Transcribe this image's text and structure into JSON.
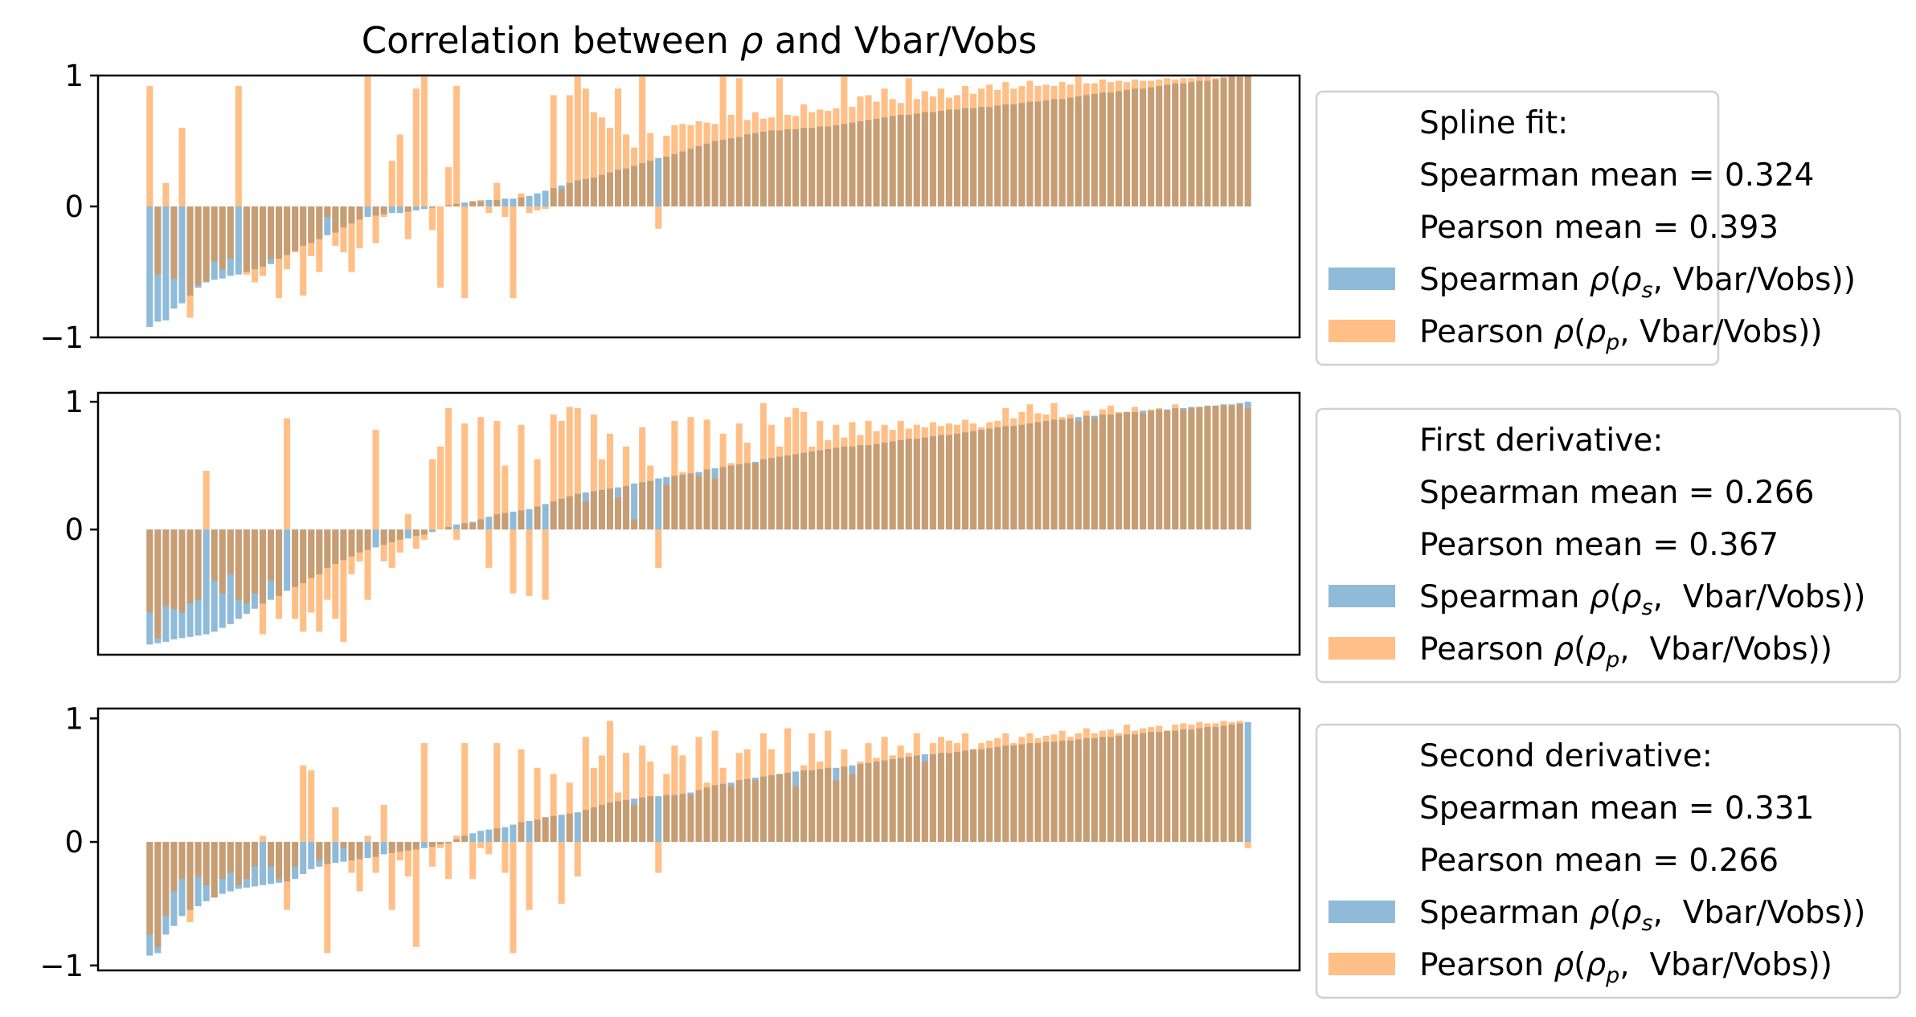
{
  "title": "Correlation between ρ and Vbar/Vobs",
  "chart_data": [
    {
      "type": "bar",
      "panel": "spline",
      "ylim": [
        -1,
        1
      ],
      "yticks": [
        {
          "value": 1,
          "label": "1"
        },
        {
          "value": 0,
          "label": "0"
        },
        {
          "value": -1,
          "label": "−1"
        }
      ],
      "legend": {
        "lines": [
          "Spline fit:",
          "Spearman mean = 0.324",
          "Pearson mean = 0.393"
        ],
        "series_labels": [
          "Spearman ρ(ρs, Vbar/Vobs)",
          "Pearson ρ(ρp, Vbar/Vobs)"
        ]
      },
      "spearman": [
        -0.92,
        -0.88,
        -0.87,
        -0.78,
        -0.74,
        -0.68,
        -0.62,
        -0.58,
        -0.56,
        -0.55,
        -0.53,
        -0.52,
        -0.5,
        -0.48,
        -0.46,
        -0.44,
        -0.4,
        -0.37,
        -0.34,
        -0.3,
        -0.28,
        -0.25,
        -0.22,
        -0.2,
        -0.16,
        -0.13,
        -0.1,
        -0.08,
        -0.07,
        -0.06,
        -0.05,
        -0.05,
        -0.04,
        -0.03,
        -0.02,
        -0.01,
        0.0,
        0.01,
        0.02,
        0.03,
        0.04,
        0.04,
        0.05,
        0.05,
        0.06,
        0.06,
        0.07,
        0.08,
        0.1,
        0.12,
        0.14,
        0.16,
        0.18,
        0.2,
        0.21,
        0.22,
        0.24,
        0.26,
        0.28,
        0.29,
        0.31,
        0.33,
        0.35,
        0.37,
        0.38,
        0.4,
        0.42,
        0.44,
        0.46,
        0.48,
        0.5,
        0.51,
        0.52,
        0.53,
        0.55,
        0.56,
        0.57,
        0.58,
        0.58,
        0.59,
        0.59,
        0.6,
        0.6,
        0.61,
        0.61,
        0.62,
        0.63,
        0.64,
        0.65,
        0.66,
        0.67,
        0.68,
        0.69,
        0.7,
        0.7,
        0.71,
        0.72,
        0.72,
        0.73,
        0.74,
        0.74,
        0.75,
        0.75,
        0.76,
        0.76,
        0.77,
        0.78,
        0.78,
        0.79,
        0.8,
        0.8,
        0.81,
        0.82,
        0.82,
        0.83,
        0.84,
        0.85,
        0.86,
        0.87,
        0.87,
        0.88,
        0.89,
        0.9,
        0.9,
        0.91,
        0.92,
        0.93,
        0.94,
        0.94,
        0.95,
        0.96,
        0.96,
        0.97,
        0.98,
        0.99,
        0.99,
        1.0
      ],
      "pearson": [
        0.92,
        -0.52,
        0.18,
        -0.55,
        0.6,
        -0.85,
        -0.6,
        -0.57,
        -0.42,
        -0.48,
        -0.4,
        0.92,
        -0.52,
        -0.58,
        -0.53,
        -0.4,
        -0.7,
        -0.48,
        -0.35,
        -0.68,
        -0.38,
        -0.5,
        -0.08,
        -0.3,
        -0.35,
        -0.5,
        -0.32,
        0.99,
        -0.28,
        -0.08,
        0.35,
        0.55,
        -0.25,
        0.9,
        0.99,
        -0.18,
        -0.62,
        0.3,
        0.92,
        -0.7,
        0.04,
        0.05,
        -0.05,
        0.18,
        -0.08,
        -0.7,
        0.1,
        -0.05,
        -0.03,
        -0.02,
        0.85,
        0.13,
        0.85,
        0.99,
        0.9,
        0.72,
        0.68,
        0.6,
        0.9,
        0.55,
        0.45,
        0.99,
        0.56,
        -0.17,
        0.54,
        0.62,
        0.63,
        0.62,
        0.65,
        0.64,
        0.63,
        0.99,
        0.7,
        0.98,
        0.66,
        0.72,
        0.67,
        0.68,
        0.98,
        0.7,
        0.69,
        0.78,
        0.72,
        0.74,
        0.73,
        0.75,
        0.99,
        0.76,
        0.84,
        0.85,
        0.8,
        0.9,
        0.82,
        0.79,
        0.98,
        0.82,
        0.88,
        0.84,
        0.9,
        0.83,
        0.85,
        0.92,
        0.86,
        0.9,
        0.93,
        0.89,
        0.95,
        0.9,
        0.92,
        0.96,
        0.92,
        0.93,
        0.92,
        0.95,
        0.93,
        0.99,
        0.94,
        0.94,
        0.97,
        0.95,
        0.96,
        0.95,
        0.97,
        0.96,
        0.96,
        0.97,
        0.98,
        0.97,
        0.98,
        0.98,
        0.99,
        0.99,
        0.98,
        0.99,
        1.0,
        0.99,
        1.0
      ],
      "colors": {
        "spearman": "#1f77b4",
        "pearson": "#ff7f0e"
      }
    },
    {
      "type": "bar",
      "panel": "first-derivative",
      "ylim": [
        -0.98,
        1.07
      ],
      "yticks": [
        {
          "value": 1,
          "label": "1"
        },
        {
          "value": 0,
          "label": "0"
        }
      ],
      "legend": {
        "lines": [
          "First derivative:",
          "Spearman mean = 0.266",
          "Pearson mean = 0.367"
        ],
        "series_labels": [
          "Spearman ρ(ρs,  Vbar/Vobs)",
          "Pearson ρ(ρp,  Vbar/Vobs)"
        ]
      },
      "spearman": [
        -0.9,
        -0.89,
        -0.88,
        -0.86,
        -0.85,
        -0.84,
        -0.83,
        -0.82,
        -0.8,
        -0.77,
        -0.74,
        -0.7,
        -0.66,
        -0.62,
        -0.58,
        -0.55,
        -0.52,
        -0.48,
        -0.45,
        -0.42,
        -0.38,
        -0.35,
        -0.3,
        -0.27,
        -0.24,
        -0.21,
        -0.18,
        -0.16,
        -0.14,
        -0.12,
        -0.1,
        -0.08,
        -0.07,
        -0.05,
        -0.04,
        -0.02,
        0.0,
        0.02,
        0.04,
        0.05,
        0.06,
        0.08,
        0.1,
        0.12,
        0.13,
        0.14,
        0.15,
        0.16,
        0.18,
        0.2,
        0.22,
        0.24,
        0.26,
        0.28,
        0.29,
        0.3,
        0.31,
        0.32,
        0.33,
        0.34,
        0.36,
        0.37,
        0.38,
        0.4,
        0.41,
        0.42,
        0.43,
        0.44,
        0.45,
        0.47,
        0.48,
        0.49,
        0.5,
        0.51,
        0.52,
        0.53,
        0.55,
        0.56,
        0.57,
        0.58,
        0.59,
        0.6,
        0.61,
        0.62,
        0.63,
        0.64,
        0.65,
        0.65,
        0.66,
        0.66,
        0.67,
        0.68,
        0.69,
        0.7,
        0.71,
        0.71,
        0.72,
        0.73,
        0.74,
        0.74,
        0.75,
        0.76,
        0.77,
        0.78,
        0.79,
        0.8,
        0.81,
        0.81,
        0.82,
        0.83,
        0.84,
        0.85,
        0.86,
        0.86,
        0.87,
        0.88,
        0.89,
        0.89,
        0.9,
        0.9,
        0.91,
        0.92,
        0.92,
        0.93,
        0.93,
        0.94,
        0.94,
        0.95,
        0.95,
        0.96,
        0.96,
        0.97,
        0.97,
        0.98,
        0.98,
        0.99,
        1.0
      ],
      "pearson": [
        -0.65,
        -0.85,
        -0.6,
        -0.62,
        -0.65,
        -0.58,
        -0.55,
        0.46,
        -0.4,
        -0.5,
        -0.35,
        -0.55,
        -0.58,
        -0.5,
        -0.82,
        -0.4,
        -0.7,
        0.87,
        -0.7,
        -0.8,
        -0.65,
        -0.8,
        -0.55,
        -0.7,
        -0.88,
        -0.35,
        -0.25,
        -0.55,
        0.78,
        -0.25,
        -0.3,
        -0.18,
        0.12,
        -0.15,
        -0.08,
        0.55,
        0.65,
        0.95,
        -0.08,
        0.83,
        0.05,
        0.88,
        -0.3,
        0.85,
        0.5,
        -0.5,
        0.82,
        -0.52,
        0.55,
        -0.55,
        0.9,
        0.85,
        0.96,
        0.95,
        0.22,
        0.9,
        0.55,
        0.75,
        0.25,
        0.65,
        0.08,
        0.8,
        0.5,
        -0.3,
        0.35,
        0.85,
        0.45,
        0.88,
        0.42,
        0.86,
        0.4,
        0.75,
        0.52,
        0.83,
        0.68,
        0.52,
        0.99,
        0.82,
        0.65,
        0.88,
        0.95,
        0.92,
        0.65,
        0.85,
        0.7,
        0.82,
        0.72,
        0.84,
        0.74,
        0.85,
        0.77,
        0.82,
        0.78,
        0.85,
        0.79,
        0.82,
        0.8,
        0.84,
        0.81,
        0.83,
        0.82,
        0.86,
        0.83,
        0.8,
        0.84,
        0.85,
        0.95,
        0.87,
        0.92,
        0.98,
        0.91,
        0.9,
        0.99,
        0.88,
        0.9,
        0.85,
        0.93,
        0.87,
        0.94,
        0.97,
        0.92,
        0.92,
        0.96,
        0.91,
        0.94,
        0.95,
        0.93,
        0.98,
        0.94,
        0.95,
        0.96,
        0.96,
        0.97,
        0.97,
        0.97,
        0.98,
        0.95
      ],
      "colors": {
        "spearman": "#1f77b4",
        "pearson": "#ff7f0e"
      }
    },
    {
      "type": "bar",
      "panel": "second-derivative",
      "ylim": [
        -1.04,
        1.08
      ],
      "yticks": [
        {
          "value": 1,
          "label": "1"
        },
        {
          "value": 0,
          "label": "0"
        },
        {
          "value": -1,
          "label": "−1"
        }
      ],
      "legend": {
        "lines": [
          "Second derivative:",
          "Spearman mean = 0.331",
          "Pearson mean = 0.266"
        ],
        "series_labels": [
          "Spearman ρ(ρs,  Vbar/Vobs)",
          "Pearson ρ(ρp,  Vbar/Vobs)"
        ]
      },
      "spearman": [
        -0.92,
        -0.9,
        -0.75,
        -0.68,
        -0.6,
        -0.55,
        -0.52,
        -0.48,
        -0.45,
        -0.42,
        -0.4,
        -0.38,
        -0.37,
        -0.36,
        -0.35,
        -0.34,
        -0.33,
        -0.32,
        -0.3,
        -0.26,
        -0.22,
        -0.2,
        -0.18,
        -0.17,
        -0.16,
        -0.15,
        -0.14,
        -0.13,
        -0.12,
        -0.1,
        -0.09,
        -0.08,
        -0.07,
        -0.06,
        -0.05,
        -0.04,
        -0.02,
        -0.01,
        0.02,
        0.05,
        0.07,
        0.09,
        0.1,
        0.11,
        0.12,
        0.14,
        0.16,
        0.17,
        0.18,
        0.2,
        0.21,
        0.22,
        0.23,
        0.24,
        0.26,
        0.28,
        0.3,
        0.32,
        0.33,
        0.34,
        0.35,
        0.36,
        0.37,
        0.37,
        0.38,
        0.38,
        0.39,
        0.4,
        0.42,
        0.44,
        0.46,
        0.47,
        0.48,
        0.5,
        0.51,
        0.52,
        0.53,
        0.54,
        0.55,
        0.56,
        0.57,
        0.58,
        0.58,
        0.59,
        0.6,
        0.6,
        0.61,
        0.62,
        0.63,
        0.64,
        0.65,
        0.66,
        0.67,
        0.68,
        0.69,
        0.7,
        0.71,
        0.71,
        0.72,
        0.72,
        0.73,
        0.74,
        0.75,
        0.75,
        0.76,
        0.77,
        0.78,
        0.78,
        0.79,
        0.8,
        0.8,
        0.81,
        0.81,
        0.82,
        0.82,
        0.83,
        0.84,
        0.84,
        0.85,
        0.85,
        0.86,
        0.87,
        0.87,
        0.88,
        0.89,
        0.89,
        0.9,
        0.9,
        0.91,
        0.91,
        0.92,
        0.93,
        0.93,
        0.94,
        0.95,
        0.96,
        0.97
      ],
      "pearson": [
        -0.75,
        -0.85,
        -0.6,
        -0.4,
        -0.3,
        -0.65,
        -0.28,
        -0.35,
        -0.45,
        -0.3,
        -0.25,
        -0.35,
        -0.3,
        -0.2,
        0.05,
        -0.2,
        -0.3,
        -0.55,
        -0.2,
        0.62,
        0.58,
        -0.15,
        -0.9,
        0.28,
        -0.05,
        -0.25,
        -0.4,
        0.05,
        -0.25,
        0.3,
        -0.55,
        -0.15,
        -0.28,
        -0.85,
        0.8,
        -0.2,
        -0.05,
        -0.3,
        0.05,
        0.8,
        -0.3,
        -0.05,
        -0.1,
        0.8,
        -0.25,
        -0.9,
        0.75,
        -0.55,
        0.6,
        0.2,
        0.55,
        -0.5,
        0.48,
        -0.28,
        0.85,
        0.6,
        0.7,
        0.98,
        0.4,
        0.72,
        0.3,
        0.78,
        0.65,
        -0.25,
        0.55,
        0.78,
        0.7,
        0.38,
        0.85,
        0.48,
        0.9,
        0.6,
        0.45,
        0.72,
        0.75,
        0.5,
        0.88,
        0.75,
        0.55,
        0.92,
        0.45,
        0.62,
        0.88,
        0.65,
        0.9,
        0.5,
        0.75,
        0.55,
        0.65,
        0.8,
        0.68,
        0.85,
        0.7,
        0.78,
        0.72,
        0.88,
        0.65,
        0.8,
        0.85,
        0.82,
        0.8,
        0.88,
        0.75,
        0.8,
        0.82,
        0.84,
        0.88,
        0.8,
        0.85,
        0.88,
        0.84,
        0.86,
        0.87,
        0.9,
        0.85,
        0.88,
        0.92,
        0.88,
        0.9,
        0.91,
        0.88,
        0.95,
        0.9,
        0.92,
        0.93,
        0.94,
        0.9,
        0.95,
        0.96,
        0.95,
        0.97,
        0.96,
        0.96,
        0.98,
        0.97,
        0.98,
        -0.05
      ],
      "colors": {
        "spearman": "#1f77b4",
        "pearson": "#ff7f0e"
      }
    }
  ]
}
